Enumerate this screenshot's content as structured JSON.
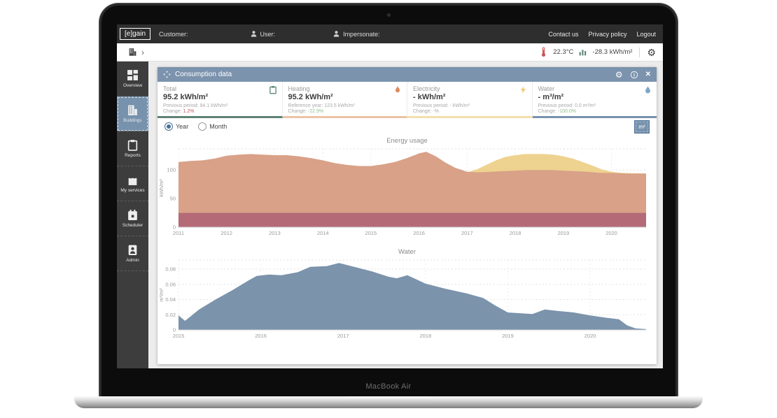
{
  "laptop": {
    "model_label": "MacBook Air"
  },
  "topbar": {
    "logo": "[e]gain",
    "customer_label": "Customer:",
    "user_label": "User:",
    "impersonate_label": "Impersonate:",
    "links": [
      {
        "label": "Contact us"
      },
      {
        "label": "Privacy policy"
      },
      {
        "label": "Logout"
      }
    ]
  },
  "toolbar": {
    "breadcrumb_chevron": "›",
    "temperature": "22.3°C",
    "energy_delta": "-28.3 kWh/m²"
  },
  "sidebar": {
    "items": [
      {
        "label": "Overview",
        "icon": "grid-icon",
        "active": false
      },
      {
        "label": "Buildings",
        "icon": "building-icon",
        "active": true
      },
      {
        "label": "Reports",
        "icon": "clipboard-icon",
        "active": false
      },
      {
        "label": "My services",
        "icon": "bag-icon",
        "active": false
      },
      {
        "label": "Scheduler",
        "icon": "calendar-icon",
        "active": false
      },
      {
        "label": "Admin",
        "icon": "person-icon",
        "active": false
      }
    ]
  },
  "panel": {
    "title": "Consumption data",
    "header_icons": [
      "move-icon",
      "gear-icon",
      "info-icon",
      "close-icon"
    ],
    "cards": [
      {
        "label": "Total",
        "value": "95.2 kWh/m²",
        "secondary": "Previous period: 94.1 kWh/m²",
        "change_label": "Change:",
        "change": "1.2%",
        "change_color": "#c9575d",
        "accent": "#5d8274",
        "icon": "clipboard-icon",
        "icon_color": "#4d7c6f"
      },
      {
        "label": "Heating",
        "value": "95.2 kWh/m²",
        "secondary": "Reference year: 123.5 kWh/m²",
        "change_label": "Change:",
        "change": "-22.9%",
        "change_color": "#93bd8f",
        "accent": "#ecc3a6",
        "icon": "flame-icon",
        "icon_color": "#dd8a5e"
      },
      {
        "label": "Electricity",
        "value": "- kWh/m²",
        "secondary": "Previous period: - kWh/m²",
        "change_label": "Change:",
        "change": "-%",
        "change_color": "#a8a8a8",
        "accent": "#f2dfae",
        "icon": "bolt-icon",
        "icon_color": "#f0c75e"
      },
      {
        "label": "Water",
        "value": "- m³/m²",
        "secondary": "Previous period: 0.0 m³/m²",
        "change_label": "Change:",
        "change": "-100.0%",
        "change_color": "#93bd8f",
        "accent": "#7792ad",
        "icon": "drop-icon",
        "icon_color": "#7ba7c9"
      }
    ],
    "period_options": [
      {
        "label": "Year",
        "selected": true
      },
      {
        "label": "Month",
        "selected": false
      }
    ],
    "unit_button": "m²"
  },
  "chart_data": [
    {
      "type": "area",
      "title": "Energy usage",
      "ylabel": "kWh/m²",
      "xlim": [
        2011,
        2020.72
      ],
      "ylim": [
        0,
        137
      ],
      "grid": "dotted",
      "legend": "none",
      "yticks": [
        {
          "v": 0,
          "label": "0"
        },
        {
          "v": 50,
          "label": "50"
        },
        {
          "v": 100,
          "label": "100"
        }
      ],
      "xticks": [
        {
          "v": 2011,
          "label": "2011"
        },
        {
          "v": 2012,
          "label": "2012"
        },
        {
          "v": 2013,
          "label": "2013"
        },
        {
          "v": 2014,
          "label": "2014"
        },
        {
          "v": 2015,
          "label": "2015"
        },
        {
          "v": 2016,
          "label": "2016"
        },
        {
          "v": 2017,
          "label": "2017"
        },
        {
          "v": 2018,
          "label": "2018"
        },
        {
          "v": 2019,
          "label": "2019"
        },
        {
          "v": 2020,
          "label": "2020"
        }
      ],
      "series": [
        {
          "name": "yellow_overlay_area",
          "color": "#eed28f",
          "points": [
            [
              2017,
              96
            ],
            [
              2017.2,
              101
            ],
            [
              2017.4,
              109
            ],
            [
              2017.6,
              117
            ],
            [
              2017.8,
              123
            ],
            [
              2018,
              126
            ],
            [
              2018.2,
              128
            ],
            [
              2018.4,
              128
            ],
            [
              2018.6,
              128
            ],
            [
              2018.8,
              127
            ],
            [
              2019,
              124
            ],
            [
              2019.2,
              120
            ],
            [
              2019.4,
              114
            ],
            [
              2019.6,
              108
            ],
            [
              2019.8,
              101
            ],
            [
              2020,
              97
            ],
            [
              2020.2,
              95
            ],
            [
              2020.72,
              94
            ]
          ]
        },
        {
          "name": "salmon_main_area",
          "color": "#d8a188",
          "points": [
            [
              2011,
              114
            ],
            [
              2011.25,
              116
            ],
            [
              2011.5,
              117
            ],
            [
              2011.75,
              120
            ],
            [
              2012,
              125
            ],
            [
              2012.25,
              127
            ],
            [
              2012.5,
              128
            ],
            [
              2012.75,
              127
            ],
            [
              2013,
              126
            ],
            [
              2013.25,
              126
            ],
            [
              2013.5,
              124
            ],
            [
              2013.75,
              121
            ],
            [
              2014,
              117
            ],
            [
              2014.25,
              112
            ],
            [
              2014.5,
              109
            ],
            [
              2014.75,
              107
            ],
            [
              2015,
              107
            ],
            [
              2015.25,
              110
            ],
            [
              2015.5,
              114
            ],
            [
              2015.75,
              121
            ],
            [
              2016,
              129
            ],
            [
              2016.15,
              132
            ],
            [
              2016.35,
              124
            ],
            [
              2016.55,
              113
            ],
            [
              2016.75,
              104
            ],
            [
              2017,
              97
            ],
            [
              2017.25,
              96
            ],
            [
              2017.5,
              97
            ],
            [
              2017.75,
              98
            ],
            [
              2018,
              99
            ],
            [
              2018.25,
              100
            ],
            [
              2018.5,
              100
            ],
            [
              2018.75,
              100
            ],
            [
              2019,
              99
            ],
            [
              2019.25,
              98
            ],
            [
              2019.5,
              97
            ],
            [
              2019.75,
              95
            ],
            [
              2020,
              95
            ],
            [
              2020.3,
              94
            ],
            [
              2020.72,
              94
            ]
          ]
        },
        {
          "name": "maroon_flat_band",
          "color": "#b56a77",
          "points": [
            [
              2011,
              25
            ],
            [
              2020.72,
              25
            ]
          ]
        }
      ]
    },
    {
      "type": "area",
      "title": "Water",
      "ylabel": "m³/m²",
      "xlim": [
        2015,
        2020.68
      ],
      "ylim": [
        0,
        0.092
      ],
      "grid": "dotted",
      "legend": "none",
      "yticks": [
        {
          "v": 0,
          "label": "0"
        },
        {
          "v": 0.02,
          "label": "0.02"
        },
        {
          "v": 0.04,
          "label": "0.04"
        },
        {
          "v": 0.06,
          "label": "0.06"
        },
        {
          "v": 0.08,
          "label": "0.08"
        }
      ],
      "xticks": [
        {
          "v": 2015,
          "label": "2015"
        },
        {
          "v": 2016,
          "label": "2016"
        },
        {
          "v": 2017,
          "label": "2017"
        },
        {
          "v": 2018,
          "label": "2018"
        },
        {
          "v": 2019,
          "label": "2019"
        },
        {
          "v": 2020,
          "label": "2020"
        }
      ],
      "series": [
        {
          "name": "water_area",
          "color": "#7b93ab",
          "points": [
            [
              2015,
              0.019
            ],
            [
              2015.08,
              0.012
            ],
            [
              2015.25,
              0.027
            ],
            [
              2015.45,
              0.04
            ],
            [
              2015.65,
              0.052
            ],
            [
              2015.85,
              0.065
            ],
            [
              2015.95,
              0.071
            ],
            [
              2016.1,
              0.073
            ],
            [
              2016.25,
              0.072
            ],
            [
              2016.45,
              0.076
            ],
            [
              2016.6,
              0.083
            ],
            [
              2016.8,
              0.084
            ],
            [
              2016.95,
              0.088
            ],
            [
              2017.1,
              0.084
            ],
            [
              2017.35,
              0.077
            ],
            [
              2017.55,
              0.07
            ],
            [
              2017.65,
              0.068
            ],
            [
              2017.78,
              0.072
            ],
            [
              2017.9,
              0.066
            ],
            [
              2018,
              0.061
            ],
            [
              2018.25,
              0.054
            ],
            [
              2018.5,
              0.048
            ],
            [
              2018.7,
              0.042
            ],
            [
              2018.85,
              0.032
            ],
            [
              2019,
              0.023
            ],
            [
              2019.15,
              0.022
            ],
            [
              2019.3,
              0.021
            ],
            [
              2019.45,
              0.027
            ],
            [
              2019.6,
              0.025
            ],
            [
              2019.8,
              0.023
            ],
            [
              2020,
              0.019
            ],
            [
              2020.2,
              0.016
            ],
            [
              2020.35,
              0.014
            ],
            [
              2020.45,
              0.006
            ],
            [
              2020.55,
              0.002
            ],
            [
              2020.68,
              0.001
            ]
          ]
        }
      ]
    }
  ]
}
